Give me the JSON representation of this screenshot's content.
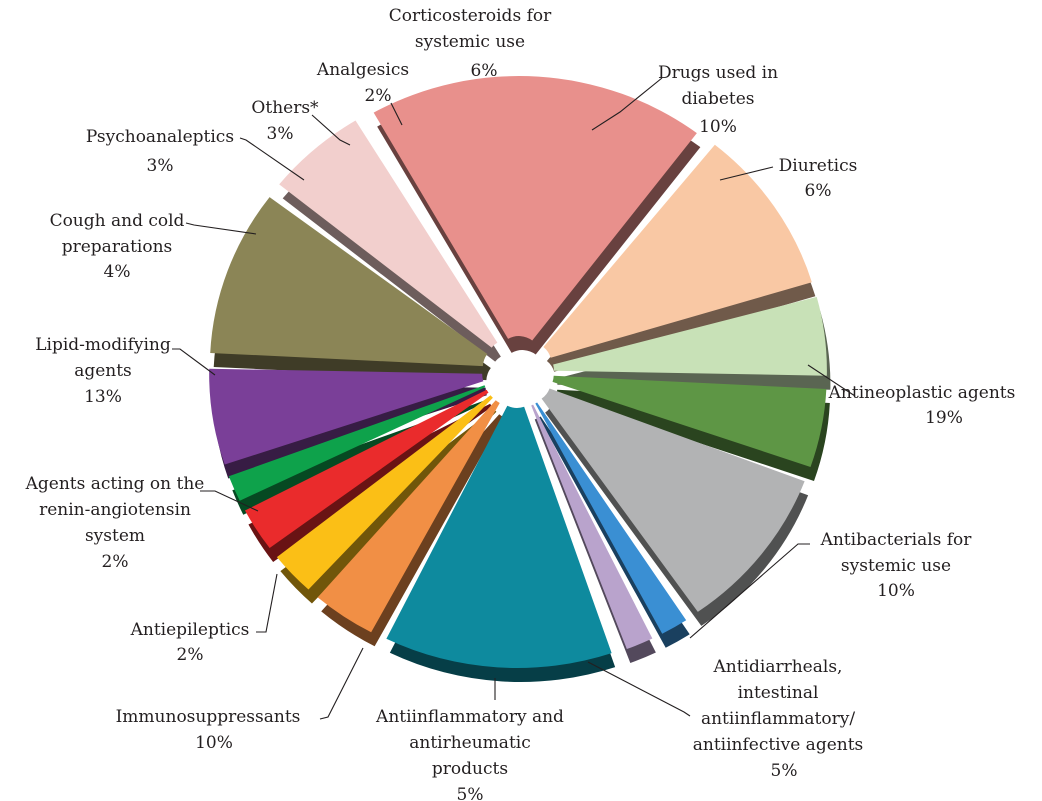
{
  "chart_data": {
    "type": "pie",
    "title": "",
    "slices": [
      {
        "label": [
          "Drugs used in",
          "diabetes"
        ],
        "pct_label": "10%",
        "value": 10,
        "color": "#8b8556"
      },
      {
        "label": [
          "Diuretics"
        ],
        "pct_label": "6%",
        "value": 6,
        "color": "#f2cfcd"
      },
      {
        "label": [
          "Antineoplastic agents"
        ],
        "pct_label": "19%",
        "value": 19,
        "color": "#e8908c"
      },
      {
        "label": [
          "Antibacterials for",
          "systemic use"
        ],
        "pct_label": "10%",
        "value": 10,
        "color": "#f9c8a4"
      },
      {
        "label": [
          "Antidiarrheals,",
          "intestinal",
          "antiinflammatory/",
          "antiinfective agents"
        ],
        "pct_label": "5%",
        "value": 5,
        "color": "#c8e1b7"
      },
      {
        "label": [
          "Antiinflammatory and",
          "antirheumatic",
          "products"
        ],
        "pct_label": "5%",
        "value": 5,
        "color": "#5e9645"
      },
      {
        "label": [
          "Immunosuppressants"
        ],
        "pct_label": "10%",
        "value": 10,
        "color": "#b2b3b4"
      },
      {
        "label": [
          "Antiepileptics"
        ],
        "pct_label": "2%",
        "value": 2,
        "color": "#3a8fd3"
      },
      {
        "label": [
          "Agents acting on the",
          "renin-angiotensin",
          "system"
        ],
        "pct_label": "2%",
        "value": 2,
        "color": "#b9a3cc"
      },
      {
        "label": [
          "Lipid-modifying",
          "agents"
        ],
        "pct_label": "13%",
        "value": 13,
        "color": "#0e8a9e"
      },
      {
        "label": [
          "Cough and cold",
          "preparations"
        ],
        "pct_label": "4%",
        "value": 4,
        "color": "#f18f45"
      },
      {
        "label": [
          "Psychoanaleptics"
        ],
        "pct_label": "3%",
        "value": 3,
        "color": "#fbbf16"
      },
      {
        "label": [
          "Others*"
        ],
        "pct_label": "3%",
        "value": 3,
        "color": "#ea2b2c"
      },
      {
        "label": [
          "Analgesics"
        ],
        "pct_label": "2%",
        "value": 2,
        "color": "#0ea24b"
      },
      {
        "label": [
          "Corticosteroids for",
          "systemic use"
        ],
        "pct_label": "6%",
        "value": 6,
        "color": "#7a3f98"
      }
    ]
  }
}
